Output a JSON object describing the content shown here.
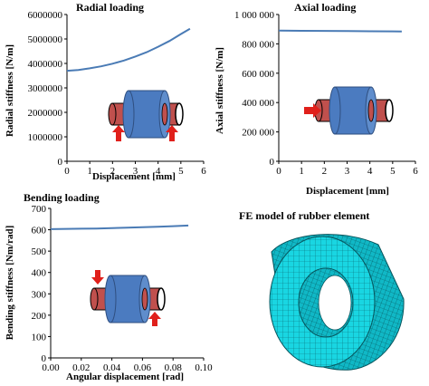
{
  "colors": {
    "series": "#4a7bb5",
    "cylinder_blue": "#4b7bc0",
    "cylinder_red": "#c0504d",
    "arrow_red": "#e0201b",
    "mesh_cyan": "#19d6e2",
    "mesh_line": "#0a5c66"
  },
  "chart_data": [
    {
      "id": "radial",
      "type": "line",
      "title": "Radial loading",
      "xlabel": "Displacement [mm]",
      "ylabel": "Radial stiffness [N/m]",
      "xlim": [
        0,
        6
      ],
      "ylim": [
        0,
        6000000
      ],
      "xticks": [
        "0",
        "1",
        "2",
        "3",
        "4",
        "5",
        "6"
      ],
      "yticks": [
        "0",
        "1000000",
        "2000000",
        "3000000",
        "4000000",
        "5000000",
        "6000000"
      ],
      "grid": false,
      "series": [
        {
          "x": [
            0,
            0.5,
            1,
            1.5,
            2,
            2.5,
            3,
            3.5,
            4,
            4.5,
            5,
            5.4
          ],
          "y": [
            3700000,
            3730000,
            3800000,
            3880000,
            3990000,
            4120000,
            4280000,
            4460000,
            4680000,
            4920000,
            5200000,
            5420000
          ]
        }
      ],
      "icon": "radial-load-bushing"
    },
    {
      "id": "axial",
      "type": "line",
      "title": "Axial loading",
      "xlabel": "Displacement [mm]",
      "ylabel": "Axial stiffness [N/m]",
      "xlim": [
        0,
        6
      ],
      "ylim": [
        0,
        1000000
      ],
      "xticks": [
        "0",
        "1",
        "2",
        "3",
        "4",
        "5",
        "6"
      ],
      "yticks": [
        "0",
        "200 000",
        "400 000",
        "600 000",
        "800 000",
        "1 000 000"
      ],
      "grid": false,
      "series": [
        {
          "x": [
            0,
            1,
            2,
            3,
            4,
            5,
            5.4
          ],
          "y": [
            890000,
            889000,
            888000,
            887000,
            886000,
            885000,
            884000
          ]
        }
      ],
      "icon": "axial-load-bushing"
    },
    {
      "id": "bending",
      "type": "line",
      "title": "Bending loading",
      "xlabel": "Angular displacement [rad]",
      "ylabel": "Bending stiffness [Nm/rad]",
      "xlim": [
        0,
        0.1
      ],
      "ylim": [
        0,
        700
      ],
      "xticks": [
        "0.00",
        "0.02",
        "0.04",
        "0.06",
        "0.08",
        "0.10"
      ],
      "yticks": [
        "0",
        "100",
        "200",
        "300",
        "400",
        "500",
        "600",
        "700"
      ],
      "grid": false,
      "series": [
        {
          "x": [
            0,
            0.01,
            0.02,
            0.03,
            0.04,
            0.05,
            0.06,
            0.07,
            0.08,
            0.09
          ],
          "y": [
            603,
            604,
            605,
            606,
            608,
            610,
            612,
            614,
            617,
            620
          ]
        }
      ],
      "icon": "bending-load-bushing"
    }
  ],
  "fe_panel": {
    "title": "FE model of rubber element",
    "image": "rubber-bushing-fe-mesh"
  }
}
